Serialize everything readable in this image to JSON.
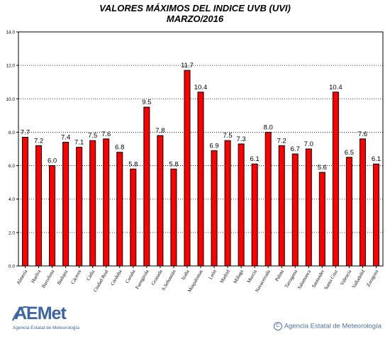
{
  "chart_data": {
    "type": "bar",
    "title": "VALORES MÁXIMOS DEL INDICE UVB (UVI)",
    "subtitle": "MARZO/2016",
    "xlabel": "",
    "ylabel": "",
    "ylim": [
      0,
      14
    ],
    "yticks": [
      "0.0",
      "2.0",
      "4.0",
      "6.0",
      "8.0",
      "10.0",
      "12.0",
      "14.0"
    ],
    "grid": true,
    "bar_color": "#ff0000",
    "categories": [
      "Almería",
      "Huelva",
      "Barcelona",
      "Badajoz",
      "Cáceres",
      "Cádiz",
      "Ciudad Real",
      "Córdoba",
      "Coruña",
      "Fuengirola",
      "Granada",
      "S.Sebastián",
      "Izaña",
      "Maspalomas",
      "León",
      "Madrid",
      "Málaga",
      "Murcia",
      "Navacerrada",
      "Palma",
      "Tarragona",
      "Salamanca",
      "Santander",
      "Santa Cruz",
      "Valencia",
      "Valladolid",
      "Zaragoza"
    ],
    "values": [
      7.7,
      7.2,
      6.0,
      7.4,
      7.1,
      7.5,
      7.6,
      6.8,
      5.8,
      9.5,
      7.8,
      5.8,
      11.7,
      10.4,
      6.9,
      7.5,
      7.3,
      6.1,
      8.0,
      7.2,
      6.7,
      7.0,
      5.6,
      10.4,
      6.5,
      7.6,
      6.1
    ],
    "value_labels": [
      "7.7",
      "7.2",
      "6.0",
      "7.4",
      "7.1",
      "7.5",
      "7.6",
      "6.8",
      "5.8",
      "9.5",
      "7.8",
      "5.8",
      "11.7",
      "10.4",
      "6.9",
      "7.5",
      "7.3",
      "6.1",
      "8.0",
      "7.2",
      "6.7",
      "7.0",
      "5.6",
      "10.4",
      "6.5",
      "7.6",
      "6.1"
    ]
  },
  "footer": {
    "logo_text": "AEMet",
    "logo_subtext": "Agencia Estatal de Meteorología",
    "copyright_text": "Agencia Estatal de Meteorología",
    "copyright_symbol": "C"
  }
}
